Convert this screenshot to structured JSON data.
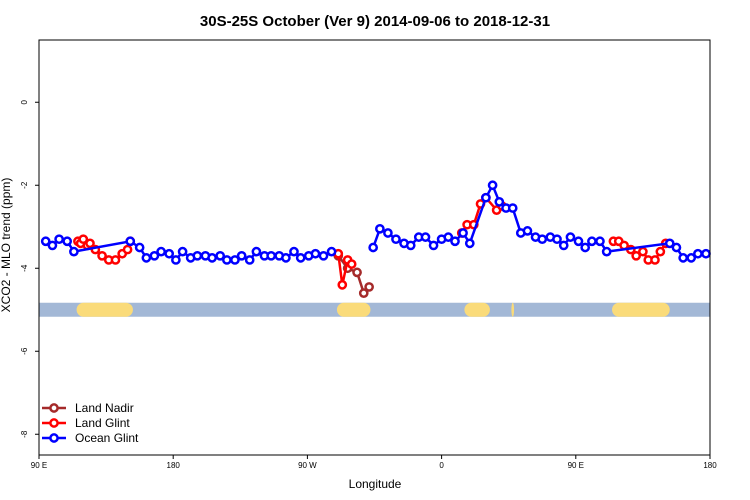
{
  "chart_data": {
    "type": "line",
    "title": "30S-25S October (Ver 9)   2014-09-06 to 2018-12-31",
    "xlabel": "Longitude",
    "ylabel": "XCO2 - MLO trend (ppm)",
    "xlim": [
      0,
      500
    ],
    "ylim": [
      -8.5,
      1.5
    ],
    "x_ticks": [
      {
        "value": 0,
        "label": "90 E"
      },
      {
        "value": 100,
        "label": "180"
      },
      {
        "value": 200,
        "label": "90 W"
      },
      {
        "value": 300,
        "label": "0"
      },
      {
        "value": 400,
        "label": "90 E"
      },
      {
        "value": 500,
        "label": "180"
      }
    ],
    "y_ticks": [
      {
        "value": 0,
        "label": "0"
      },
      {
        "value": -2,
        "label": "-2"
      },
      {
        "value": -4,
        "label": "-4"
      },
      {
        "value": -6,
        "label": "-6"
      },
      {
        "value": -8,
        "label": "-8"
      }
    ],
    "surface_band": {
      "y": -5,
      "base_color": "#a3b8d6",
      "land_color": "#fadb7a",
      "land_segments": [
        [
          28,
          70
        ],
        [
          222,
          247
        ],
        [
          317,
          336
        ],
        [
          352,
          354
        ],
        [
          427,
          470
        ]
      ]
    },
    "legend_position": "bottom-left",
    "series": [
      {
        "name": "Land Nadir",
        "color": "#a52a2a",
        "segments": [
          [
            [
              223,
              -3.7
            ],
            [
              230,
              -4.0
            ],
            [
              237,
              -4.1
            ],
            [
              242,
              -4.6
            ],
            [
              246,
              -4.45
            ]
          ]
        ]
      },
      {
        "name": "Land Glint",
        "color": "#ff0000",
        "segments": [
          [
            [
              29,
              -3.35
            ],
            [
              31,
              -3.4
            ],
            [
              33,
              -3.3
            ],
            [
              36,
              -3.45
            ],
            [
              38,
              -3.4
            ],
            [
              42,
              -3.55
            ],
            [
              47,
              -3.7
            ],
            [
              52,
              -3.8
            ],
            [
              57,
              -3.8
            ],
            [
              62,
              -3.65
            ],
            [
              66,
              -3.55
            ],
            [
              68,
              -3.35
            ]
          ],
          [
            [
              223,
              -3.65
            ],
            [
              226,
              -4.4
            ],
            [
              230,
              -3.8
            ],
            [
              233,
              -3.9
            ]
          ],
          [
            [
              315,
              -3.15
            ],
            [
              319,
              -2.95
            ],
            [
              324,
              -2.95
            ],
            [
              329,
              -2.45
            ],
            [
              333,
              -2.3
            ],
            [
              341,
              -2.6
            ],
            [
              345,
              -2.5
            ]
          ],
          [
            [
              428,
              -3.35
            ],
            [
              432,
              -3.35
            ],
            [
              436,
              -3.45
            ],
            [
              441,
              -3.55
            ],
            [
              445,
              -3.7
            ],
            [
              450,
              -3.6
            ],
            [
              454,
              -3.8
            ],
            [
              459,
              -3.8
            ],
            [
              463,
              -3.6
            ],
            [
              467,
              -3.4
            ]
          ]
        ]
      },
      {
        "name": "Ocean Glint",
        "color": "#0000ff",
        "segments": [
          [
            [
              5,
              -3.35
            ],
            [
              10,
              -3.45
            ],
            [
              15,
              -3.3
            ],
            [
              21,
              -3.35
            ],
            [
              26,
              -3.6
            ],
            [
              68,
              -3.35
            ],
            [
              75,
              -3.5
            ],
            [
              80,
              -3.75
            ],
            [
              86,
              -3.7
            ],
            [
              91,
              -3.6
            ],
            [
              97,
              -3.65
            ],
            [
              102,
              -3.8
            ],
            [
              107,
              -3.6
            ],
            [
              113,
              -3.75
            ],
            [
              118,
              -3.7
            ],
            [
              124,
              -3.7
            ],
            [
              129,
              -3.75
            ],
            [
              135,
              -3.7
            ],
            [
              140,
              -3.8
            ],
            [
              146,
              -3.8
            ],
            [
              151,
              -3.7
            ],
            [
              157,
              -3.8
            ],
            [
              162,
              -3.6
            ],
            [
              168,
              -3.7
            ],
            [
              173,
              -3.7
            ],
            [
              179,
              -3.7
            ],
            [
              184,
              -3.75
            ],
            [
              190,
              -3.6
            ],
            [
              195,
              -3.75
            ],
            [
              201,
              -3.7
            ],
            [
              206,
              -3.65
            ],
            [
              212,
              -3.7
            ],
            [
              218,
              -3.6
            ]
          ],
          [
            [
              249,
              -3.5
            ],
            [
              254,
              -3.05
            ],
            [
              260,
              -3.15
            ],
            [
              266,
              -3.3
            ],
            [
              272,
              -3.4
            ],
            [
              277,
              -3.45
            ],
            [
              283,
              -3.25
            ],
            [
              288,
              -3.25
            ],
            [
              294,
              -3.45
            ],
            [
              300,
              -3.3
            ],
            [
              305,
              -3.25
            ],
            [
              310,
              -3.35
            ],
            [
              316,
              -3.15
            ],
            [
              321,
              -3.4
            ],
            [
              333,
              -2.3
            ],
            [
              338,
              -2.0
            ],
            [
              343,
              -2.4
            ],
            [
              348,
              -2.55
            ],
            [
              353,
              -2.55
            ],
            [
              359,
              -3.15
            ],
            [
              364,
              -3.1
            ],
            [
              370,
              -3.25
            ],
            [
              375,
              -3.3
            ],
            [
              381,
              -3.25
            ],
            [
              386,
              -3.3
            ],
            [
              391,
              -3.45
            ],
            [
              396,
              -3.25
            ],
            [
              402,
              -3.35
            ],
            [
              407,
              -3.5
            ],
            [
              412,
              -3.35
            ],
            [
              418,
              -3.35
            ],
            [
              423,
              -3.6
            ],
            [
              470,
              -3.4
            ],
            [
              475,
              -3.5
            ],
            [
              480,
              -3.75
            ],
            [
              486,
              -3.75
            ],
            [
              491,
              -3.65
            ],
            [
              497,
              -3.65
            ]
          ]
        ]
      }
    ]
  }
}
